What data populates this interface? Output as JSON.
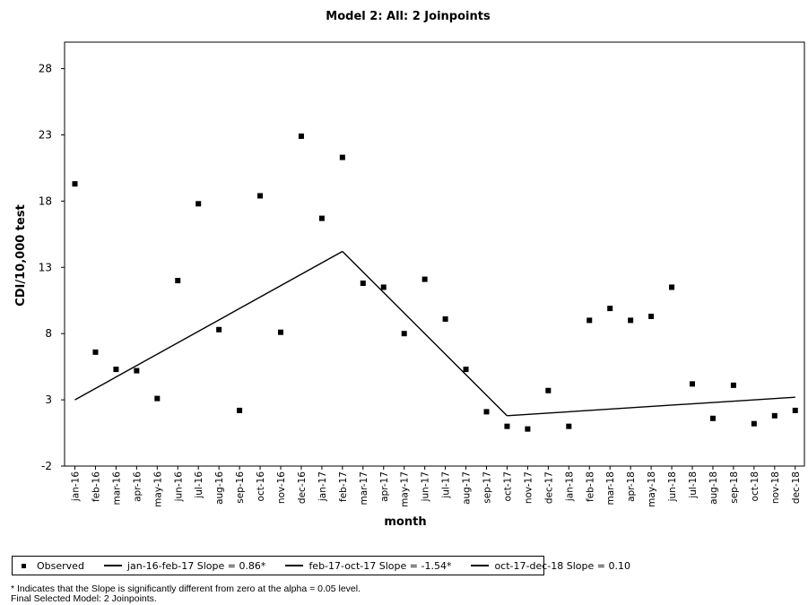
{
  "chart_data": {
    "type": "scatter",
    "title": "Model 2: All: 2 Joinpoints",
    "xlabel": "month",
    "ylabel": "CDI/10,000 test",
    "ylim": [
      -2,
      30
    ],
    "yticks": [
      -2,
      3,
      8,
      13,
      18,
      23,
      28
    ],
    "categories": [
      "jan-16",
      "feb-16",
      "mar-16",
      "apr-16",
      "may-16",
      "jun-16",
      "jul-16",
      "aug-16",
      "sep-16",
      "oct-16",
      "nov-16",
      "dec-16",
      "jan-17",
      "feb-17",
      "mar-17",
      "apr-17",
      "may-17",
      "jun-17",
      "jul-17",
      "aug-17",
      "sep-17",
      "oct-17",
      "nov-17",
      "dec-17",
      "jan-18",
      "feb-18",
      "mar-18",
      "apr-18",
      "may-18",
      "jun-18",
      "jul-18",
      "aug-18",
      "sep-18",
      "oct-18",
      "nov-18",
      "dec-18"
    ],
    "series": [
      {
        "name": "Observed",
        "marker": "square",
        "values": [
          19.3,
          6.6,
          5.3,
          5.2,
          3.1,
          12.0,
          17.8,
          8.3,
          2.2,
          18.4,
          8.1,
          22.9,
          16.7,
          21.3,
          11.8,
          11.5,
          8.0,
          12.1,
          9.1,
          5.3,
          2.1,
          1.0,
          0.8,
          3.7,
          1.0,
          9.0,
          9.9,
          9.0,
          9.3,
          11.5,
          4.2,
          1.6,
          4.1,
          1.2,
          1.8,
          2.2
        ]
      }
    ],
    "fitted_segments": [
      {
        "name": "jan-16-feb-17",
        "slope": "0.86*",
        "x": [
          "jan-16",
          "feb-17"
        ],
        "y": [
          3.0,
          14.2
        ]
      },
      {
        "name": "feb-17-oct-17",
        "slope": "-1.54*",
        "x": [
          "feb-17",
          "oct-17"
        ],
        "y": [
          14.2,
          1.8
        ]
      },
      {
        "name": "oct-17-dec-18",
        "slope": "0.10",
        "x": [
          "oct-17",
          "dec-18"
        ],
        "y": [
          1.8,
          3.2
        ]
      }
    ],
    "grid": false,
    "legend_position": "bottom"
  },
  "legend": {
    "observed_label": "Observed",
    "segment1_label": "jan-16-feb-17 Slope  =  0.86*",
    "segment2_label": "feb-17-oct-17 Slope  =  -1.54*",
    "segment3_label": "oct-17-dec-18 Slope  =  0.10"
  },
  "footnotes": {
    "significance": "* Indicates that the Slope is significantly different from zero at the alpha = 0.05 level.",
    "final_model": "Final Selected Model: 2 Joinpoints."
  }
}
